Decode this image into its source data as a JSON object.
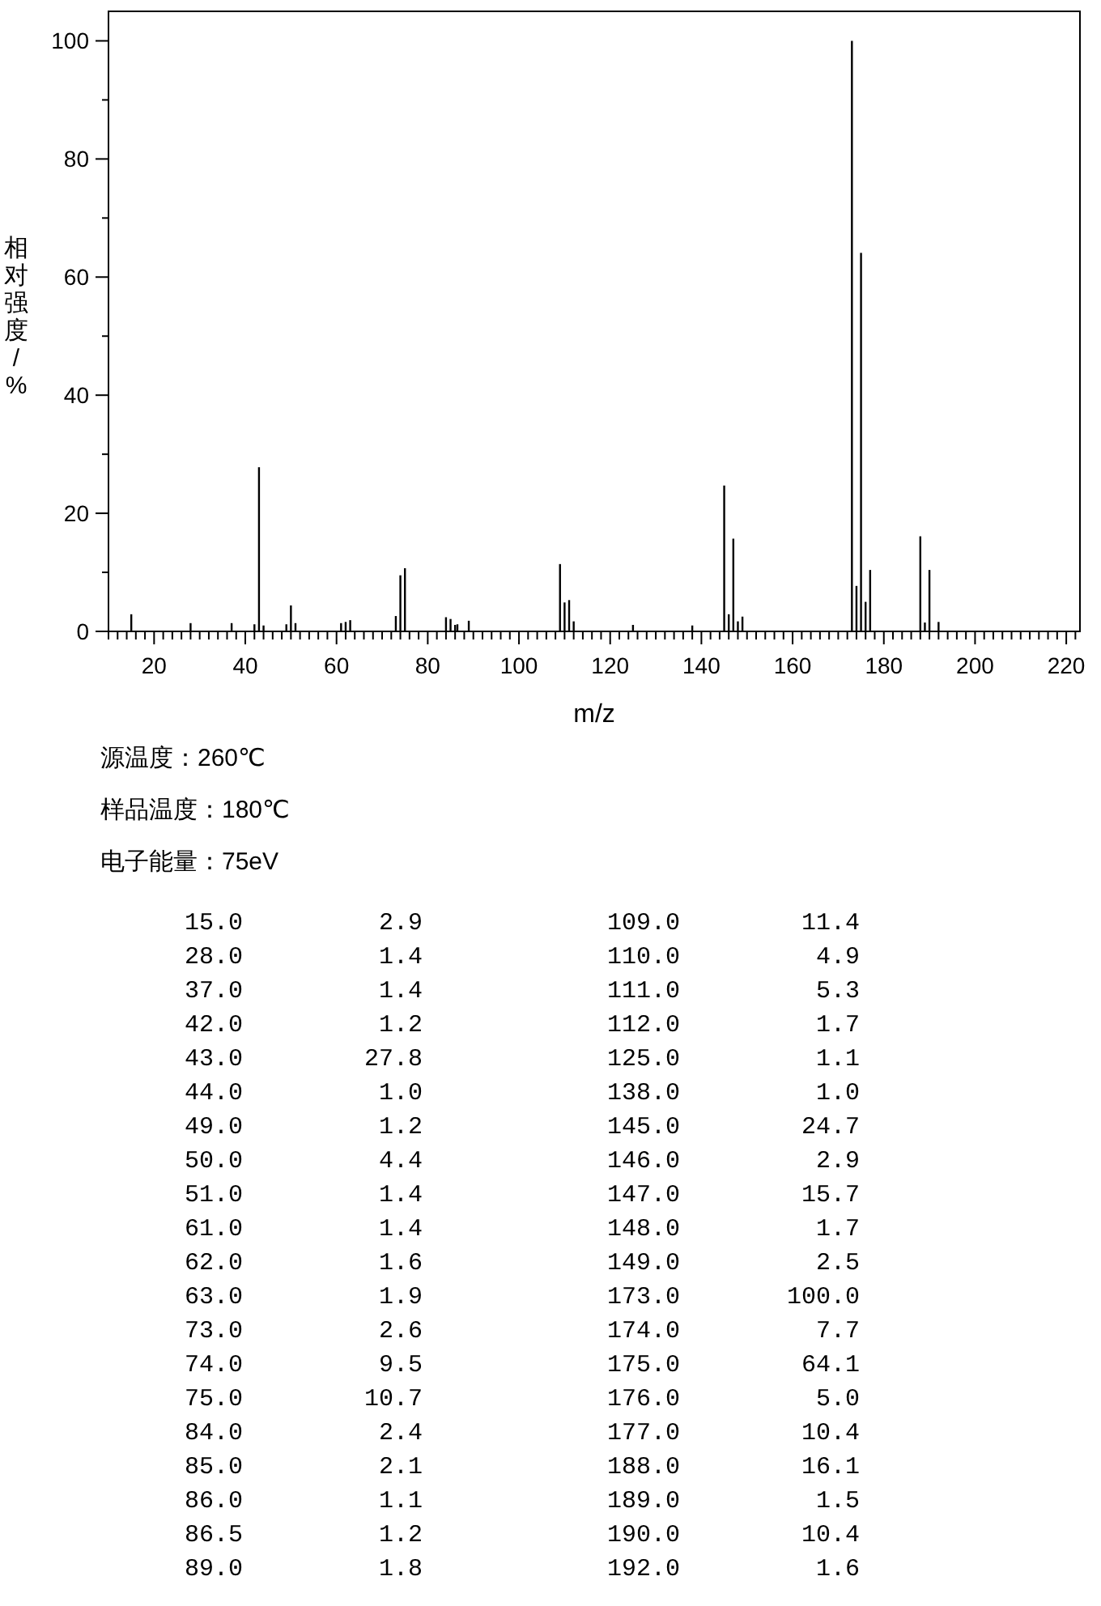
{
  "chart_data": [
    {
      "type": "bar",
      "xlabel": "m/z",
      "ylabel": "相对强度/%",
      "annotations": [
        "源温度：260℃",
        "样品温度：180℃",
        "电子能量：75eV"
      ],
      "x": [
        15.0,
        28.0,
        37.0,
        42.0,
        43.0,
        44.0,
        49.0,
        50.0,
        51.0,
        61.0,
        62.0,
        63.0,
        73.0,
        74.0,
        75.0,
        84.0,
        85.0,
        86.0,
        86.5,
        89.0,
        109.0,
        110.0,
        111.0,
        112.0,
        125.0,
        138.0,
        145.0,
        146.0,
        147.0,
        148.0,
        149.0,
        173.0,
        174.0,
        175.0,
        176.0,
        177.0,
        188.0,
        189.0,
        190.0,
        192.0
      ],
      "series": [
        {
          "color": "#000000",
          "values": [
            2.9,
            1.4,
            1.4,
            1.2,
            27.8,
            1.0,
            1.2,
            4.4,
            1.4,
            1.4,
            1.6,
            1.9,
            2.6,
            9.5,
            10.7,
            2.4,
            2.1,
            1.1,
            1.2,
            1.8,
            11.4,
            4.9,
            5.3,
            1.7,
            1.1,
            1.0,
            24.7,
            2.9,
            15.7,
            1.7,
            2.5,
            100.0,
            7.7,
            64.1,
            5.0,
            10.4,
            16.1,
            1.5,
            10.4,
            1.6
          ]
        }
      ],
      "xlim": [
        10,
        223
      ],
      "ylim": [
        0,
        105
      ],
      "xticks": [
        {
          "value": 10,
          "label": null
        },
        {
          "value": 12,
          "label": null
        },
        {
          "value": 14,
          "label": null
        },
        {
          "value": 16,
          "label": null
        },
        {
          "value": 18,
          "label": null
        },
        20,
        {
          "value": 22,
          "label": null
        },
        {
          "value": 24,
          "label": null
        },
        {
          "value": 26,
          "label": null
        },
        {
          "value": 28,
          "label": null
        },
        {
          "value": 30,
          "label": null
        },
        {
          "value": 32,
          "label": null
        },
        {
          "value": 34,
          "label": null
        },
        {
          "value": 36,
          "label": null
        },
        {
          "value": 38,
          "label": null
        },
        40,
        {
          "value": 42,
          "label": null
        },
        {
          "value": 44,
          "label": null
        },
        {
          "value": 46,
          "label": null
        },
        {
          "value": 48,
          "label": null
        },
        {
          "value": 50,
          "label": null
        },
        {
          "value": 52,
          "label": null
        },
        {
          "value": 54,
          "label": null
        },
        {
          "value": 56,
          "label": null
        },
        {
          "value": 58,
          "label": null
        },
        60,
        {
          "value": 62,
          "label": null
        },
        {
          "value": 64,
          "label": null
        },
        {
          "value": 66,
          "label": null
        },
        {
          "value": 68,
          "label": null
        },
        {
          "value": 70,
          "label": null
        },
        {
          "value": 72,
          "label": null
        },
        {
          "value": 74,
          "label": null
        },
        {
          "value": 76,
          "label": null
        },
        {
          "value": 78,
          "label": null
        },
        80,
        {
          "value": 82,
          "label": null
        },
        {
          "value": 84,
          "label": null
        },
        {
          "value": 86,
          "label": null
        },
        {
          "value": 88,
          "label": null
        },
        {
          "value": 90,
          "label": null
        },
        {
          "value": 92,
          "label": null
        },
        {
          "value": 94,
          "label": null
        },
        {
          "value": 96,
          "label": null
        },
        {
          "value": 98,
          "label": null
        },
        100,
        {
          "value": 102,
          "label": null
        },
        {
          "value": 104,
          "label": null
        },
        {
          "value": 106,
          "label": null
        },
        {
          "value": 108,
          "label": null
        },
        {
          "value": 110,
          "label": null
        },
        {
          "value": 112,
          "label": null
        },
        {
          "value": 114,
          "label": null
        },
        {
          "value": 116,
          "label": null
        },
        {
          "value": 118,
          "label": null
        },
        120,
        {
          "value": 122,
          "label": null
        },
        {
          "value": 124,
          "label": null
        },
        {
          "value": 126,
          "label": null
        },
        {
          "value": 128,
          "label": null
        },
        {
          "value": 130,
          "label": null
        },
        {
          "value": 132,
          "label": null
        },
        {
          "value": 134,
          "label": null
        },
        {
          "value": 136,
          "label": null
        },
        {
          "value": 138,
          "label": null
        },
        140,
        {
          "value": 142,
          "label": null
        },
        {
          "value": 144,
          "label": null
        },
        {
          "value": 146,
          "label": null
        },
        {
          "value": 148,
          "label": null
        },
        {
          "value": 150,
          "label": null
        },
        {
          "value": 152,
          "label": null
        },
        {
          "value": 154,
          "label": null
        },
        {
          "value": 156,
          "label": null
        },
        {
          "value": 158,
          "label": null
        },
        160,
        {
          "value": 162,
          "label": null
        },
        {
          "value": 164,
          "label": null
        },
        {
          "value": 166,
          "label": null
        },
        {
          "value": 168,
          "label": null
        },
        {
          "value": 170,
          "label": null
        },
        {
          "value": 172,
          "label": null
        },
        {
          "value": 174,
          "label": null
        },
        {
          "value": 176,
          "label": null
        },
        {
          "value": 178,
          "label": null
        },
        180,
        {
          "value": 182,
          "label": null
        },
        {
          "value": 184,
          "label": null
        },
        {
          "value": 186,
          "label": null
        },
        {
          "value": 188,
          "label": null
        },
        {
          "value": 190,
          "label": null
        },
        {
          "value": 192,
          "label": null
        },
        {
          "value": 194,
          "label": null
        },
        {
          "value": 196,
          "label": null
        },
        {
          "value": 198,
          "label": null
        },
        200,
        {
          "value": 202,
          "label": null
        },
        {
          "value": 204,
          "label": null
        },
        {
          "value": 206,
          "label": null
        },
        {
          "value": 208,
          "label": null
        },
        {
          "value": 210,
          "label": null
        },
        {
          "value": 212,
          "label": null
        },
        {
          "value": 214,
          "label": null
        },
        {
          "value": 216,
          "label": null
        },
        {
          "value": 218,
          "label": null
        },
        220,
        {
          "value": 222,
          "label": null
        }
      ],
      "yticks": [
        0,
        {
          "value": 10,
          "label": null
        },
        20,
        {
          "value": 30,
          "label": null
        },
        40,
        {
          "value": 50,
          "label": null
        },
        60,
        {
          "value": 70,
          "label": null
        },
        80,
        {
          "value": 90,
          "label": null
        },
        100
      ],
      "grid": false
    },
    {
      "type": "other",
      "categories": [
        "15.0",
        "28.0",
        "37.0",
        "42.0",
        "43.0",
        "44.0",
        "49.0",
        "50.0",
        "51.0",
        "61.0",
        "62.0",
        "63.0",
        "73.0",
        "74.0",
        "75.0",
        "84.0",
        "85.0",
        "86.0",
        "86.5",
        "89.0",
        "109.0",
        "110.0",
        "111.0",
        "112.0",
        "125.0",
        "138.0",
        "145.0",
        "146.0",
        "147.0",
        "148.0",
        "149.0",
        "173.0",
        "174.0",
        "175.0",
        "176.0",
        "177.0",
        "188.0",
        "189.0",
        "190.0",
        "192.0"
      ],
      "value_labels": [
        "2.9",
        "1.4",
        "1.4",
        "1.2",
        "27.8",
        "1.0",
        "1.2",
        "4.4",
        "1.4",
        "1.4",
        "1.6",
        "1.9",
        "2.6",
        "9.5",
        "10.7",
        "2.4",
        "2.1",
        "1.1",
        "1.2",
        "1.8",
        "11.4",
        "4.9",
        "5.3",
        "1.7",
        "1.1",
        "1.0",
        "24.7",
        "2.9",
        "15.7",
        "1.7",
        "2.5",
        "100.0",
        "7.7",
        "64.1",
        "5.0",
        "10.4",
        "16.1",
        "1.5",
        "10.4",
        "1.6"
      ]
    }
  ]
}
